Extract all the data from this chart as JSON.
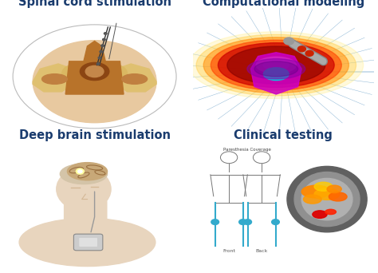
{
  "title_top_left": "Spinal cord stimulation",
  "title_top_right": "Computational modeling",
  "title_bottom_left": "Deep brain stimulation",
  "title_bottom_right": "Clinical testing",
  "title_color": "#1a3c6e",
  "title_fontsize": 10.5,
  "background_color": "#ffffff",
  "fig_width": 4.74,
  "fig_height": 3.42,
  "dpi": 100
}
